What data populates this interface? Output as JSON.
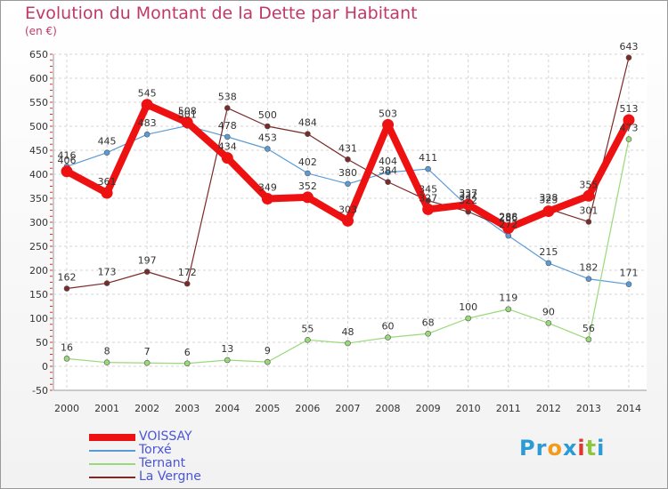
{
  "title": "Evolution du Montant de la Dette par Habitant",
  "subtitle": "(en €)",
  "logo": {
    "text": "Proxiti",
    "letters": [
      {
        "ch": "P",
        "color": "#2a9bd4"
      },
      {
        "ch": "r",
        "color": "#2a9bd4"
      },
      {
        "ch": "o",
        "color": "#f29b1d"
      },
      {
        "ch": "x",
        "color": "#2a9bd4"
      },
      {
        "ch": "i",
        "color": "#e0362c"
      },
      {
        "ch": "t",
        "color": "#8dc63f"
      },
      {
        "ch": "i",
        "color": "#2a9bd4"
      }
    ]
  },
  "chart_data": {
    "type": "line",
    "x": [
      "2000",
      "2001",
      "2002",
      "2003",
      "2004",
      "2005",
      "2006",
      "2007",
      "2008",
      "2009",
      "2010",
      "2011",
      "2012",
      "2013",
      "2014"
    ],
    "ylim": [
      -50,
      650
    ],
    "yticks": [
      -50,
      0,
      50,
      100,
      150,
      200,
      250,
      300,
      350,
      400,
      450,
      500,
      550,
      600,
      650
    ],
    "grid": true,
    "legend_position": "bottom-left",
    "series": [
      {
        "name": "VOISSAY",
        "color": "#ee1111",
        "width": 8,
        "values": [
          406,
          361,
          545,
          508,
          434,
          349,
          352,
          303,
          503,
          327,
          337,
          288,
          323,
          355,
          513
        ],
        "labels": [
          "406",
          "361",
          "545",
          "508",
          "434",
          "349",
          "352",
          "303",
          "503",
          "327",
          "337",
          "288",
          "323",
          "355",
          "513"
        ]
      },
      {
        "name": "Torxé",
        "color": "#5b9bd5",
        "width": 1.2,
        "values": [
          416,
          445,
          483,
          501,
          478,
          453,
          402,
          380,
          404,
          411,
          332,
          272,
          215,
          182,
          171
        ],
        "labels": [
          "416",
          "445",
          "483",
          "501",
          "478",
          "453",
          "402",
          "380",
          "404",
          "411",
          "332",
          "272",
          "215",
          "182",
          "171"
        ]
      },
      {
        "name": "Ternant",
        "color": "#99d97a",
        "width": 1.2,
        "values": [
          16,
          8,
          7,
          6,
          13,
          9,
          55,
          48,
          60,
          68,
          100,
          119,
          90,
          56,
          473
        ],
        "labels": [
          "16",
          "8",
          "7",
          "6",
          "13",
          "9",
          "55",
          "48",
          "60",
          "68",
          "100",
          "119",
          "90",
          "56",
          "473"
        ]
      },
      {
        "name": "La Vergne",
        "color": "#7b2a2a",
        "width": 1.2,
        "values": [
          162,
          173,
          197,
          172,
          538,
          500,
          484,
          431,
          384,
          345,
          322,
          286,
          328,
          301,
          643
        ],
        "labels": [
          "162",
          "173",
          "197",
          "172",
          "538",
          "500",
          "484",
          "431",
          "384",
          "345",
          "322",
          "286",
          "328",
          "301",
          "643"
        ]
      }
    ]
  }
}
